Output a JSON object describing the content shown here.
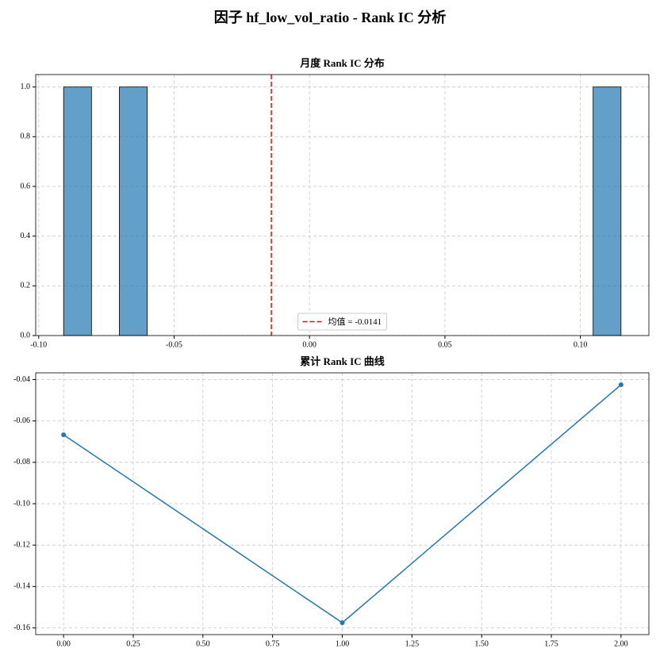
{
  "title": "因子 hf_low_vol_ratio - Rank IC 分析",
  "chart_data": [
    {
      "type": "histogram",
      "title": "月度 Rank IC 分布",
      "bins": [
        -0.0908,
        -0.08051,
        -0.07022,
        -0.05993,
        -0.04964,
        -0.03935,
        -0.02906,
        -0.01877,
        -0.00848,
        0.00181,
        0.0121,
        0.02239,
        0.03268,
        0.04297,
        0.05326,
        0.06355,
        0.07384,
        0.08413,
        0.09442,
        0.10471,
        0.115
      ],
      "values": [
        1,
        0,
        1,
        0,
        0,
        0,
        0,
        0,
        0,
        0,
        0,
        0,
        0,
        0,
        0,
        0,
        0,
        0,
        0,
        1
      ],
      "color": "#1f77b4",
      "alpha": 0.7,
      "edgecolor": "#000000",
      "xlim": [
        -0.1011,
        0.1253
      ],
      "xticks": [
        {
          "value": -0.1,
          "label": "-0.10"
        },
        {
          "value": -0.05,
          "label": "-0.05"
        },
        {
          "value": 0,
          "label": "0.00"
        },
        {
          "value": 0.05,
          "label": "0.05"
        },
        {
          "value": 0.1,
          "label": "0.10"
        }
      ],
      "ylim": [
        0,
        1.05
      ],
      "yticks": [
        {
          "value": 0,
          "label": "0.0"
        },
        {
          "value": 0.2,
          "label": "0.2"
        },
        {
          "value": 0.4,
          "label": "0.4"
        },
        {
          "value": 0.6,
          "label": "0.6"
        },
        {
          "value": 0.8,
          "label": "0.8"
        },
        {
          "value": 1,
          "label": "1.0"
        }
      ],
      "mean": {
        "value": -0.0141,
        "label": "均值 = -0.0141",
        "color": "#ff0000"
      },
      "legend_loc": "lower center",
      "grid": true
    },
    {
      "type": "line",
      "title": "累计 Rank IC 曲线",
      "x": [
        0,
        1,
        2
      ],
      "values": [
        -0.0667,
        -0.1575,
        -0.0425
      ],
      "color": "#1f77b4",
      "xlim": [
        -0.1,
        2.1
      ],
      "xticks": [
        {
          "value": 0,
          "label": "0.00"
        },
        {
          "value": 0.25,
          "label": "0.25"
        },
        {
          "value": 0.5,
          "label": "0.50"
        },
        {
          "value": 0.75,
          "label": "0.75"
        },
        {
          "value": 1,
          "label": "1.00"
        },
        {
          "value": 1.25,
          "label": "1.25"
        },
        {
          "value": 1.5,
          "label": "1.50"
        },
        {
          "value": 1.75,
          "label": "1.75"
        },
        {
          "value": 2,
          "label": "2.00"
        }
      ],
      "ylim": [
        -0.16325,
        -0.03675
      ],
      "yticks": [
        {
          "value": -0.16,
          "label": "-0.16"
        },
        {
          "value": -0.14,
          "label": "-0.14"
        },
        {
          "value": -0.12,
          "label": "-0.12"
        },
        {
          "value": -0.1,
          "label": "-0.10"
        },
        {
          "value": -0.08,
          "label": "-0.08"
        },
        {
          "value": -0.06,
          "label": "-0.06"
        },
        {
          "value": -0.04,
          "label": "-0.04"
        }
      ],
      "grid": true
    }
  ]
}
